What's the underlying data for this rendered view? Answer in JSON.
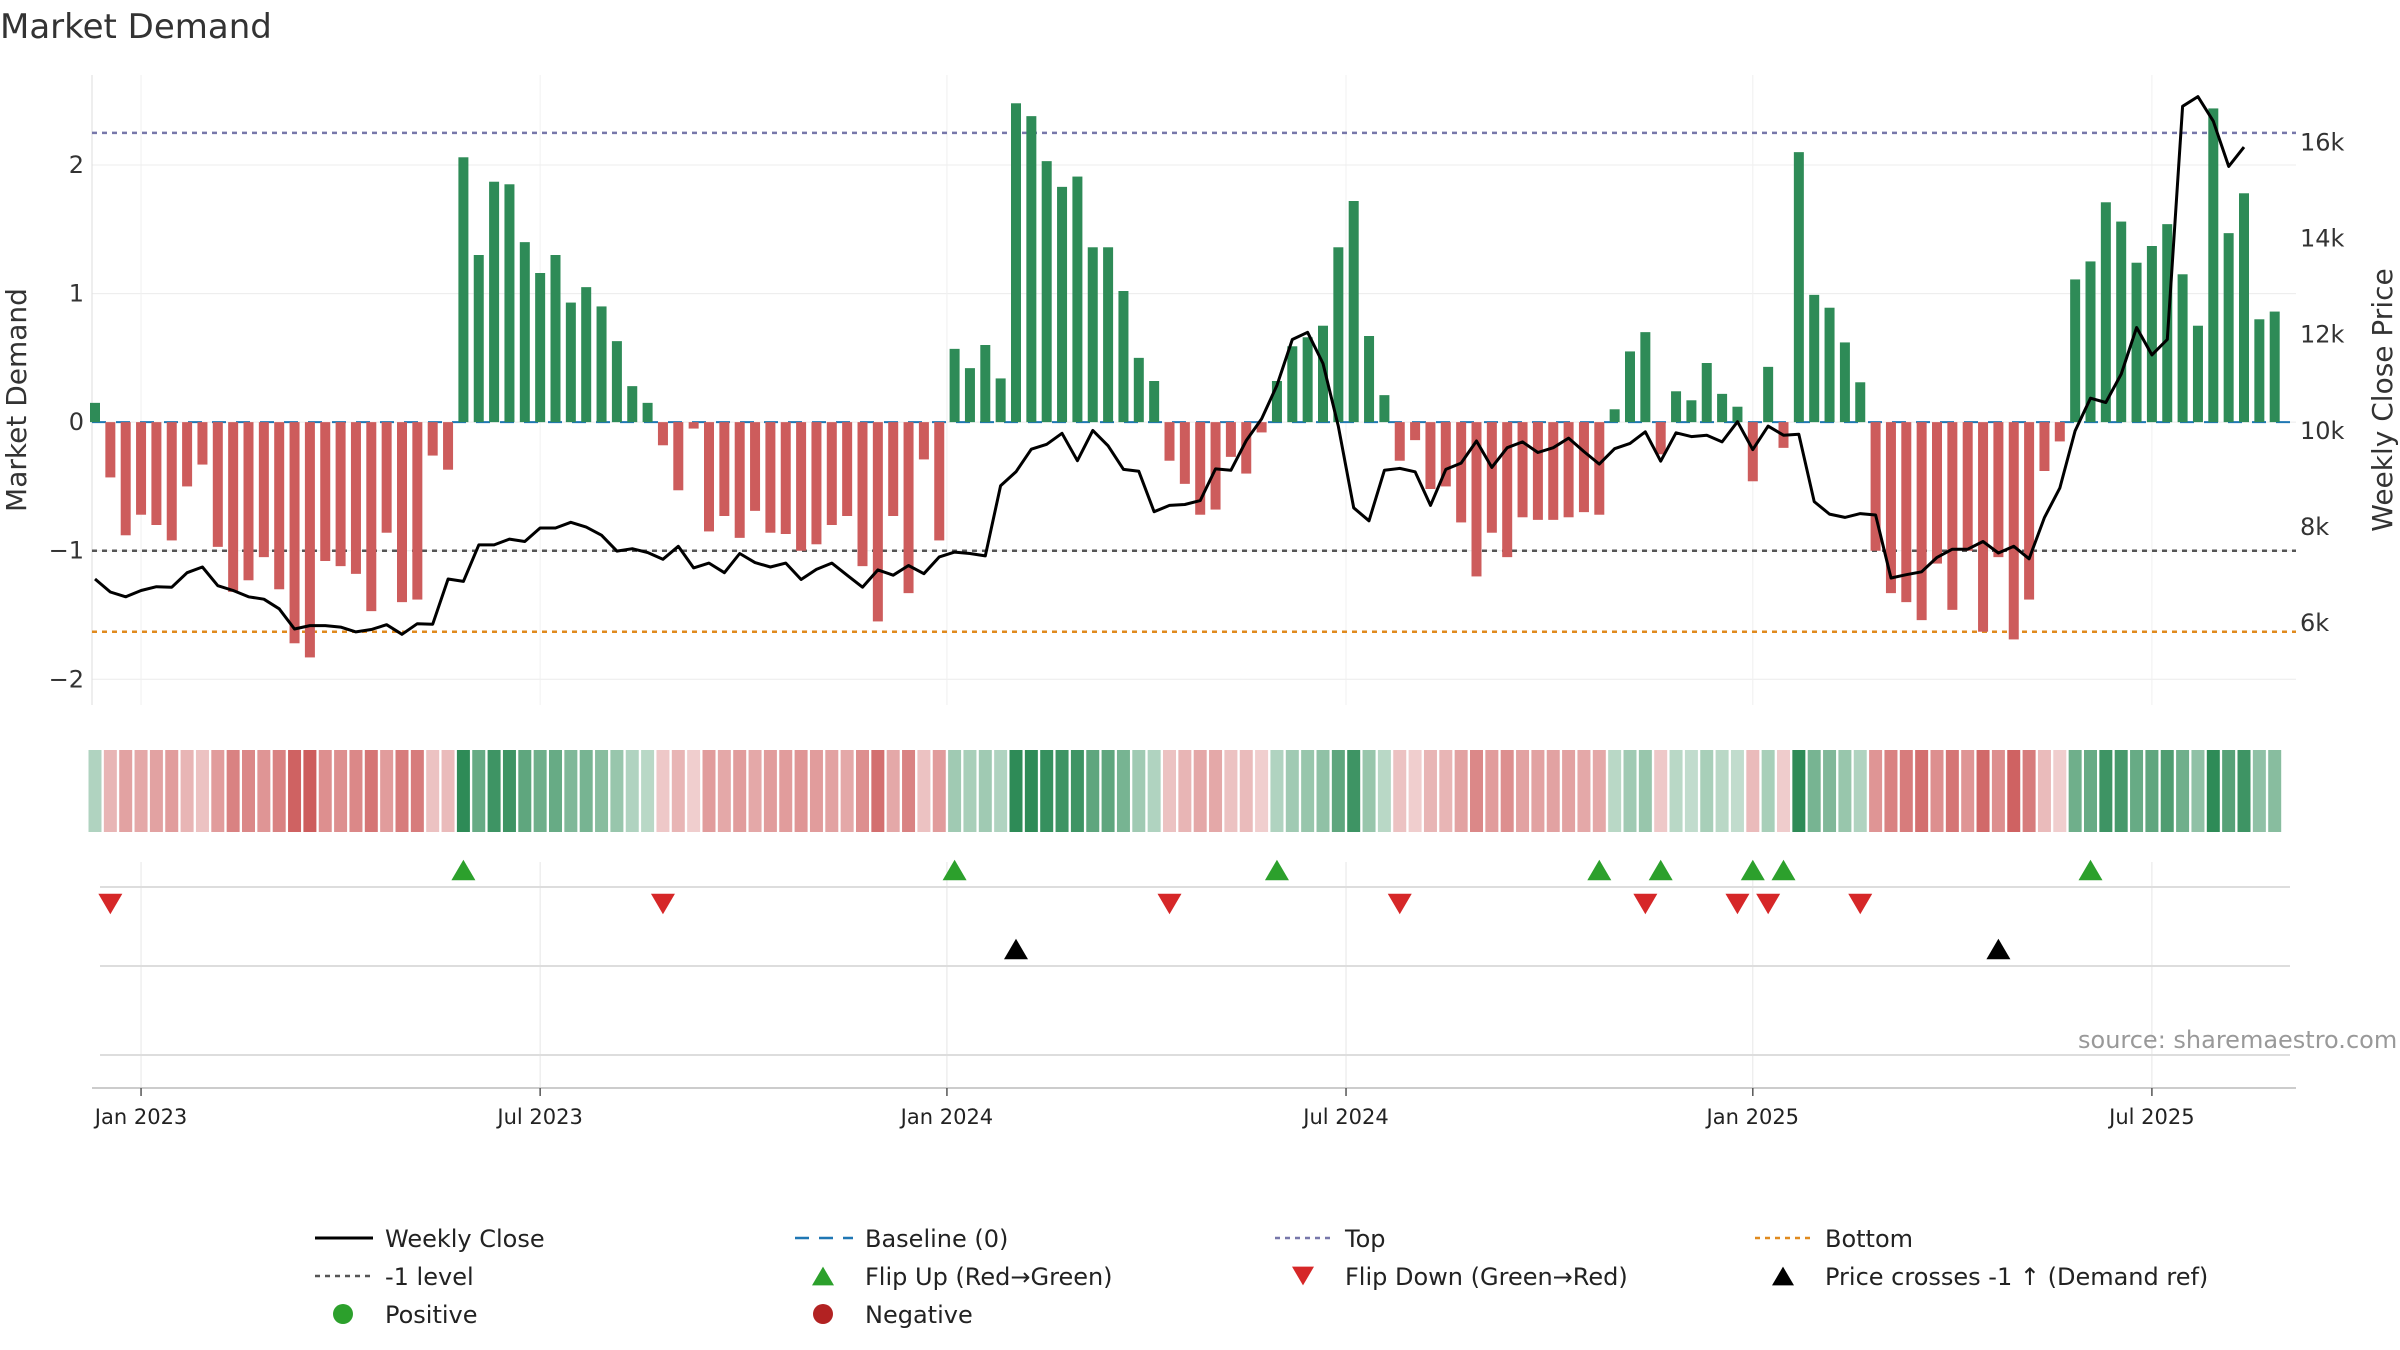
{
  "chart_data": {
    "type": "bar",
    "title": "Market Demand",
    "ylabel": "Market Demand",
    "y2label": "Weekly Close Price",
    "source": "source: sharemaestro.com",
    "ylim": [
      -2.2,
      2.7
    ],
    "y2lim": [
      4300,
      17400
    ],
    "yticks": [
      {
        "v": 2,
        "label": "2"
      },
      {
        "v": 1,
        "label": "1"
      },
      {
        "v": 0,
        "label": "0"
      },
      {
        "v": -1,
        "label": "−1"
      },
      {
        "v": -2,
        "label": "−2"
      }
    ],
    "y2ticks": [
      {
        "v": 16000,
        "label": "16k"
      },
      {
        "v": 14000,
        "label": "14k"
      },
      {
        "v": 12000,
        "label": "12k"
      },
      {
        "v": 10000,
        "label": "10k"
      },
      {
        "v": 8000,
        "label": "8k"
      },
      {
        "v": 6000,
        "label": "6k"
      }
    ],
    "x_ticks": [
      {
        "week": 3,
        "label": "Jan 2023"
      },
      {
        "week": 29,
        "label": "Jul 2023"
      },
      {
        "week": 55.5,
        "label": "Jan 2024"
      },
      {
        "week": 81.5,
        "label": "Jul 2024"
      },
      {
        "week": 108,
        "label": "Jan 2025"
      },
      {
        "week": 134,
        "label": "Jul 2025"
      }
    ],
    "reference_lines": {
      "top": 2.25,
      "minus_one": -1.0,
      "bottom": -1.63,
      "baseline": 0
    },
    "demand": [
      0.15,
      -0.43,
      -0.88,
      -0.72,
      -0.8,
      -0.92,
      -0.5,
      -0.33,
      -0.97,
      -1.32,
      -1.23,
      -1.05,
      -1.3,
      -1.72,
      -1.83,
      -1.08,
      -1.12,
      -1.18,
      -1.47,
      -0.86,
      -1.4,
      -1.38,
      -0.26,
      -0.37,
      2.06,
      1.3,
      1.87,
      1.85,
      1.4,
      1.16,
      1.3,
      0.93,
      1.05,
      0.9,
      0.63,
      0.28,
      0.15,
      -0.18,
      -0.53,
      -0.05,
      -0.85,
      -0.73,
      -0.9,
      -0.69,
      -0.86,
      -0.87,
      -1.0,
      -0.95,
      -0.8,
      -0.73,
      -1.12,
      -1.55,
      -0.73,
      -1.33,
      -0.29,
      -0.92,
      0.57,
      0.42,
      0.6,
      0.34,
      2.48,
      2.38,
      2.03,
      1.83,
      1.91,
      1.36,
      1.36,
      1.02,
      0.5,
      0.32,
      -0.3,
      -0.48,
      -0.72,
      -0.68,
      -0.27,
      -0.4,
      -0.08,
      0.32,
      0.59,
      0.66,
      0.75,
      1.36,
      1.72,
      0.67,
      0.21,
      -0.3,
      -0.14,
      -0.52,
      -0.5,
      -0.78,
      -1.2,
      -0.86,
      -1.05,
      -0.74,
      -0.76,
      -0.76,
      -0.74,
      -0.7,
      -0.72,
      0.1,
      0.55,
      0.7,
      -0.25,
      0.24,
      0.17,
      0.46,
      0.22,
      0.12,
      -0.46,
      0.43,
      -0.2,
      2.1,
      0.99,
      0.89,
      0.62,
      0.31,
      -1.0,
      -1.33,
      -1.4,
      -1.54,
      -1.1,
      -1.46,
      -1.0,
      -1.63,
      -1.05,
      -1.69,
      -1.38,
      -0.38,
      -0.15,
      1.11,
      1.25,
      1.71,
      1.56,
      1.24,
      1.37,
      1.54,
      1.15,
      0.75,
      2.44,
      1.47,
      1.78,
      0.8,
      0.86
    ],
    "price": [
      6920,
      6650,
      6550,
      6680,
      6760,
      6750,
      7050,
      7170,
      6780,
      6680,
      6550,
      6500,
      6300,
      5880,
      5950,
      5950,
      5920,
      5820,
      5870,
      5970,
      5770,
      5990,
      5980,
      6920,
      6870,
      7630,
      7630,
      7750,
      7700,
      7980,
      7980,
      8100,
      8000,
      7830,
      7500,
      7550,
      7470,
      7330,
      7600,
      7150,
      7250,
      7050,
      7450,
      7260,
      7170,
      7250,
      6910,
      7120,
      7250,
      7000,
      6750,
      7110,
      7000,
      7200,
      7030,
      7380,
      7480,
      7450,
      7400,
      8860,
      9150,
      9620,
      9720,
      9950,
      9380,
      10010,
      9690,
      9200,
      9160,
      8320,
      8450,
      8470,
      8550,
      9210,
      9180,
      9800,
      10250,
      10950,
      11900,
      12050,
      11400,
      10100,
      8400,
      8130,
      9180,
      9220,
      9150,
      8450,
      9200,
      9330,
      9790,
      9240,
      9650,
      9770,
      9550,
      9650,
      9850,
      9570,
      9310,
      9630,
      9740,
      9980,
      9370,
      9960,
      9880,
      9910,
      9770,
      10190,
      9610,
      10100,
      9910,
      9930,
      8530,
      8270,
      8200,
      8280,
      8250,
      6940,
      7010,
      7070,
      7370,
      7540,
      7540,
      7700,
      7460,
      7600,
      7340,
      8200,
      8810,
      10000,
      10680,
      10590,
      11180,
      12150,
      11580,
      11900,
      16750,
      16950,
      16440,
      15500,
      15900
    ],
    "state_intensity": [
      0.2,
      0.3,
      0.45,
      0.4,
      0.45,
      0.5,
      0.3,
      0.2,
      0.5,
      0.7,
      0.65,
      0.55,
      0.7,
      0.95,
      1.0,
      0.6,
      0.6,
      0.65,
      0.8,
      0.5,
      0.75,
      0.75,
      0.2,
      0.25,
      1.0,
      0.65,
      0.9,
      0.9,
      0.7,
      0.6,
      0.65,
      0.5,
      0.55,
      0.45,
      0.35,
      0.2,
      0.15,
      0.15,
      0.3,
      0.1,
      0.5,
      0.4,
      0.5,
      0.4,
      0.5,
      0.5,
      0.55,
      0.5,
      0.45,
      0.4,
      0.6,
      0.85,
      0.4,
      0.7,
      0.2,
      0.5,
      0.3,
      0.25,
      0.3,
      0.2,
      1.0,
      1.0,
      0.95,
      0.9,
      0.9,
      0.7,
      0.7,
      0.55,
      0.3,
      0.2,
      0.2,
      0.3,
      0.4,
      0.4,
      0.2,
      0.25,
      0.1,
      0.2,
      0.3,
      0.35,
      0.4,
      0.7,
      0.9,
      0.35,
      0.15,
      0.2,
      0.1,
      0.3,
      0.3,
      0.45,
      0.65,
      0.5,
      0.6,
      0.45,
      0.45,
      0.45,
      0.45,
      0.4,
      0.4,
      0.15,
      0.3,
      0.35,
      0.15,
      0.15,
      0.1,
      0.25,
      0.15,
      0.1,
      0.25,
      0.25,
      0.12,
      1.0,
      0.55,
      0.5,
      0.35,
      0.2,
      0.55,
      0.7,
      0.75,
      0.85,
      0.6,
      0.8,
      0.55,
      0.9,
      0.6,
      0.95,
      0.75,
      0.25,
      0.1,
      0.6,
      0.65,
      0.9,
      0.85,
      0.65,
      0.7,
      0.8,
      0.6,
      0.4,
      1.0,
      0.75,
      0.9,
      0.4,
      0.45
    ],
    "flip_up_weeks": [
      24,
      56,
      77,
      98,
      102,
      108,
      110,
      130
    ],
    "flip_down_weeks": [
      1,
      37,
      70,
      85,
      101,
      107,
      109,
      115
    ],
    "price_cross_weeks": [
      60,
      124
    ]
  },
  "legend": [
    {
      "key": "weekly_close",
      "label": "Weekly Close",
      "marker": "line-solid",
      "color": "#000000"
    },
    {
      "key": "baseline",
      "label": "Baseline (0)",
      "marker": "line-dash",
      "color": "#1f77b4"
    },
    {
      "key": "top",
      "label": "Top",
      "marker": "line-dot",
      "color": "#7777aa"
    },
    {
      "key": "bottom",
      "label": "Bottom",
      "marker": "line-dot",
      "color": "#e08a1e"
    },
    {
      "key": "minus_one",
      "label": "-1 level",
      "marker": "line-dot",
      "color": "#555555"
    },
    {
      "key": "flip_up",
      "label": "Flip Up (Red→Green)",
      "marker": "triangle-up",
      "color": "#2ca02c"
    },
    {
      "key": "flip_down",
      "label": "Flip Down (Green→Red)",
      "marker": "triangle-down",
      "color": "#d62728"
    },
    {
      "key": "price_cross",
      "label": "Price crosses -1 ↑ (Demand ref)",
      "marker": "triangle-up",
      "color": "#000000"
    },
    {
      "key": "positive",
      "label": "Positive",
      "marker": "circle",
      "color": "#2ca02c"
    },
    {
      "key": "negative",
      "label": "Negative",
      "marker": "circle",
      "color": "#b22222"
    }
  ],
  "colors": {
    "positive_bar": "#2e8b57",
    "negative_bar": "#cd5c5c",
    "price_line": "#000000",
    "flip_up": "#2ca02c",
    "flip_down": "#d62728",
    "cross": "#000000"
  }
}
